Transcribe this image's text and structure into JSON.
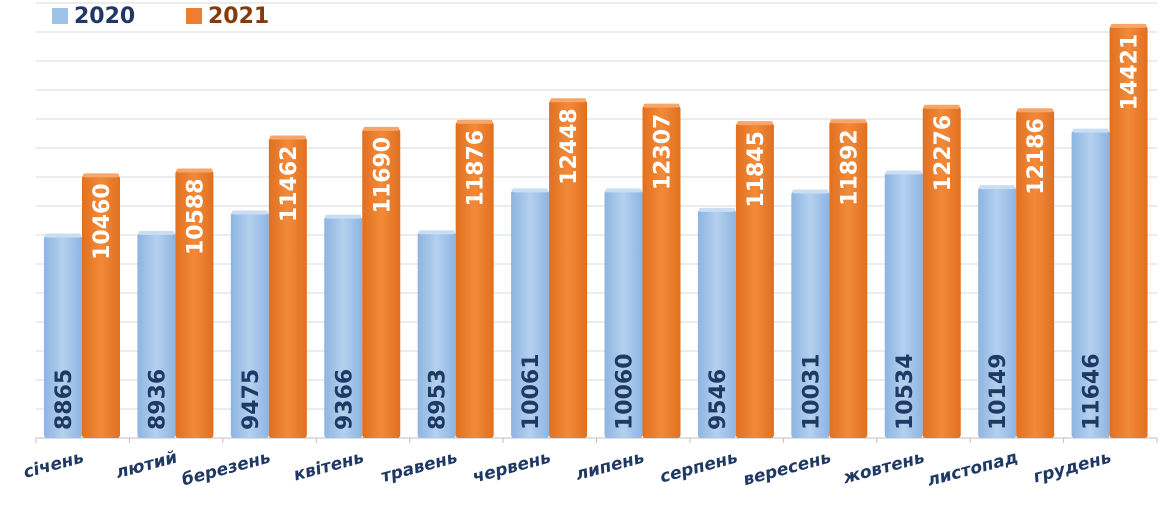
{
  "chart_data": {
    "type": "bar",
    "categories": [
      "січень",
      "лютий",
      "березень",
      "квітень",
      "травень",
      "червень",
      "липень",
      "серпень",
      "вересень",
      "жовтень",
      "листопад",
      "грудень"
    ],
    "series": [
      {
        "name": "2020",
        "color": "#9dc3e6",
        "label_color": "#1f3864",
        "values": [
          8865,
          8936,
          9475,
          9366,
          8953,
          10061,
          10060,
          9546,
          10031,
          10534,
          10149,
          11646
        ]
      },
      {
        "name": "2021",
        "color": "#ed7d31",
        "label_color": "#ffffff",
        "values": [
          10460,
          10588,
          11462,
          11690,
          11876,
          12448,
          12307,
          11845,
          11892,
          12276,
          12186,
          14421
        ]
      }
    ],
    "legend": {
      "position": "top-left",
      "text_colors": [
        "#1f3864",
        "#843c0c"
      ]
    },
    "grid": true,
    "ylim": [
      3500,
      15000
    ]
  }
}
